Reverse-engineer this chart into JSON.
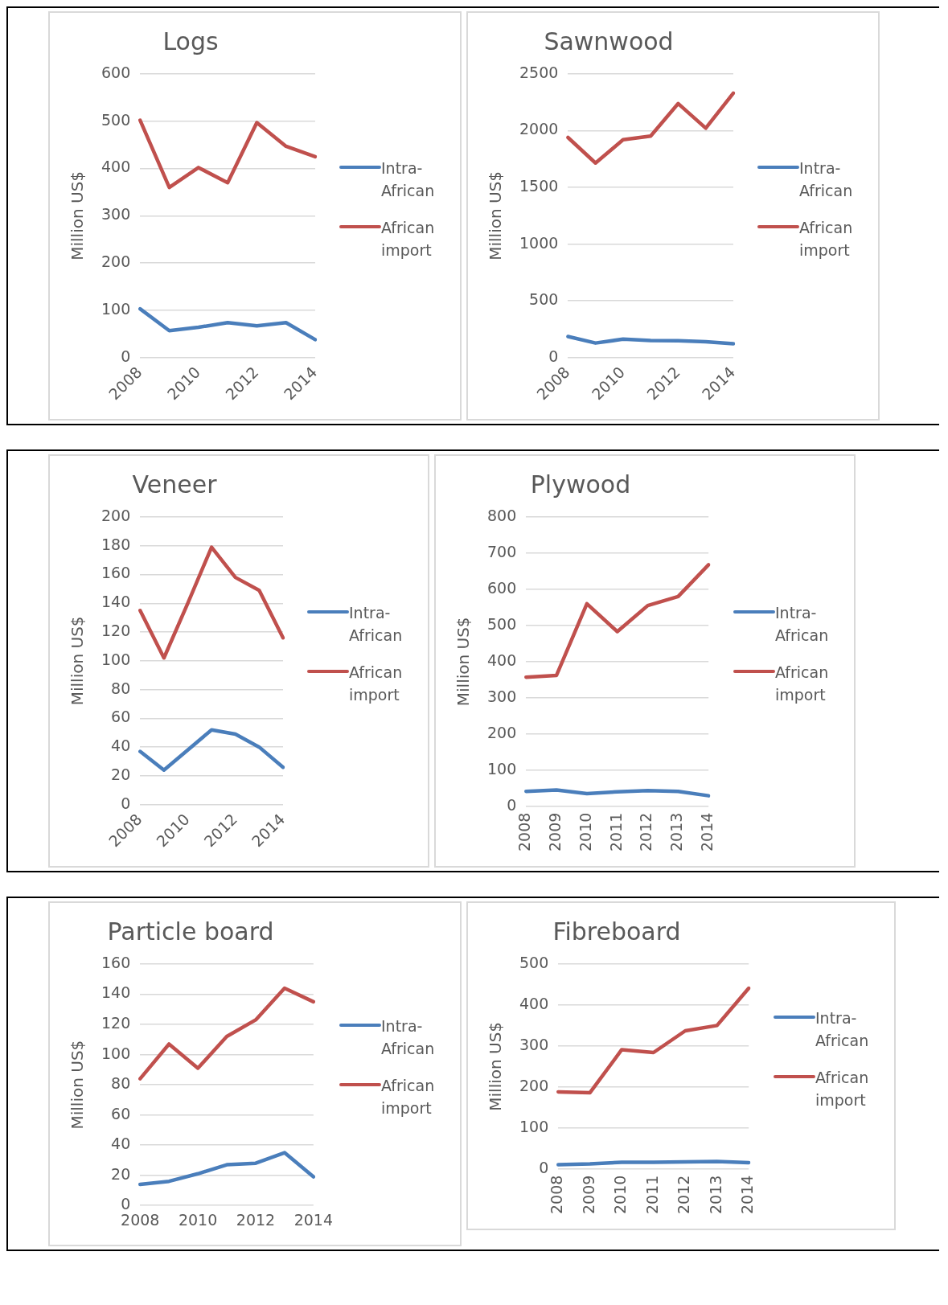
{
  "chart_data": [
    {
      "type": "line",
      "title": "Logs",
      "ylabel": "Million US$",
      "categories": [
        "2008",
        null,
        "2010",
        null,
        "2012",
        null,
        "2014"
      ],
      "ylim": [
        0,
        600
      ],
      "yticks": [
        0,
        100,
        200,
        300,
        400,
        500,
        600
      ],
      "grid": "y",
      "legend": "right",
      "series": [
        {
          "name": "Intra-African",
          "color": "#4a7ebb",
          "values": [
            103,
            57,
            64,
            74,
            67,
            74,
            38
          ]
        },
        {
          "name": "African import",
          "color": "#c0504d",
          "values": [
            502,
            360,
            402,
            370,
            497,
            447,
            425
          ]
        }
      ]
    },
    {
      "type": "line",
      "title": "Sawnwood",
      "ylabel": "Million US$",
      "categories": [
        "2008",
        null,
        "2010",
        null,
        "2012",
        null,
        "2014"
      ],
      "ylim": [
        0,
        2500
      ],
      "yticks": [
        0,
        500,
        1000,
        1500,
        2000,
        2500
      ],
      "grid": "y",
      "legend": "right",
      "series": [
        {
          "name": "Intra-African",
          "color": "#4a7ebb",
          "values": [
            186,
            128,
            162,
            150,
            148,
            140,
            121
          ]
        },
        {
          "name": "African import",
          "color": "#c0504d",
          "values": [
            1940,
            1715,
            1920,
            1952,
            2239,
            2022,
            2331
          ]
        }
      ]
    },
    {
      "type": "line",
      "title": "Veneer",
      "ylabel": "Million US$",
      "categories": [
        "2008",
        null,
        "2010",
        null,
        "2012",
        null,
        "2014"
      ],
      "ylim": [
        0,
        200
      ],
      "yticks": [
        0,
        20,
        40,
        60,
        80,
        100,
        120,
        140,
        160,
        180,
        200
      ],
      "grid": "y",
      "legend": "right",
      "series": [
        {
          "name": "Intra-African",
          "color": "#4a7ebb",
          "values": [
            37,
            24,
            38,
            52,
            49,
            40,
            26
          ]
        },
        {
          "name": "African import",
          "color": "#c0504d",
          "values": [
            135,
            102,
            140,
            179,
            158,
            149,
            116
          ]
        }
      ]
    },
    {
      "type": "line",
      "title": "Plywood",
      "ylabel": "Million US$",
      "categories": [
        "2008",
        "2009",
        "2010",
        "2011",
        "2012",
        "2013",
        "2014"
      ],
      "ylim": [
        0,
        800
      ],
      "yticks": [
        0,
        100,
        200,
        300,
        400,
        500,
        600,
        700,
        800
      ],
      "grid": "y",
      "legend": "right",
      "series": [
        {
          "name": "Intra-African",
          "color": "#4a7ebb",
          "values": [
            41,
            45,
            35,
            40,
            43,
            41,
            29
          ]
        },
        {
          "name": "African import",
          "color": "#c0504d",
          "values": [
            357,
            362,
            560,
            483,
            555,
            580,
            668
          ]
        }
      ]
    },
    {
      "type": "line",
      "title": "Particle board",
      "ylabel": "Million US$",
      "categories": [
        "2008",
        null,
        "2010",
        null,
        "2012",
        null,
        "2014"
      ],
      "ylim": [
        0,
        160
      ],
      "yticks": [
        0,
        20,
        40,
        60,
        80,
        100,
        120,
        140,
        160
      ],
      "grid": "y",
      "legend": "right",
      "series": [
        {
          "name": "Intra-African",
          "color": "#4a7ebb",
          "values": [
            14,
            16,
            21,
            27,
            28,
            35,
            19
          ]
        },
        {
          "name": "African import",
          "color": "#c0504d",
          "values": [
            84,
            107,
            91,
            112,
            123,
            144,
            135
          ]
        }
      ]
    },
    {
      "type": "line",
      "title": "Fibreboard",
      "ylabel": "Million US$",
      "categories": [
        "2008",
        "2009",
        "2010",
        "2011",
        "2012",
        "2013",
        "2014"
      ],
      "ylim": [
        0,
        500
      ],
      "yticks": [
        0,
        100,
        200,
        300,
        400,
        500
      ],
      "grid": "y",
      "legend": "right",
      "series": [
        {
          "name": "Intra-African",
          "color": "#4a7ebb",
          "values": [
            10,
            12,
            16,
            16,
            17,
            18,
            15
          ]
        },
        {
          "name": "African import",
          "color": "#c0504d",
          "values": [
            188,
            186,
            291,
            284,
            337,
            350,
            441
          ]
        }
      ]
    }
  ]
}
